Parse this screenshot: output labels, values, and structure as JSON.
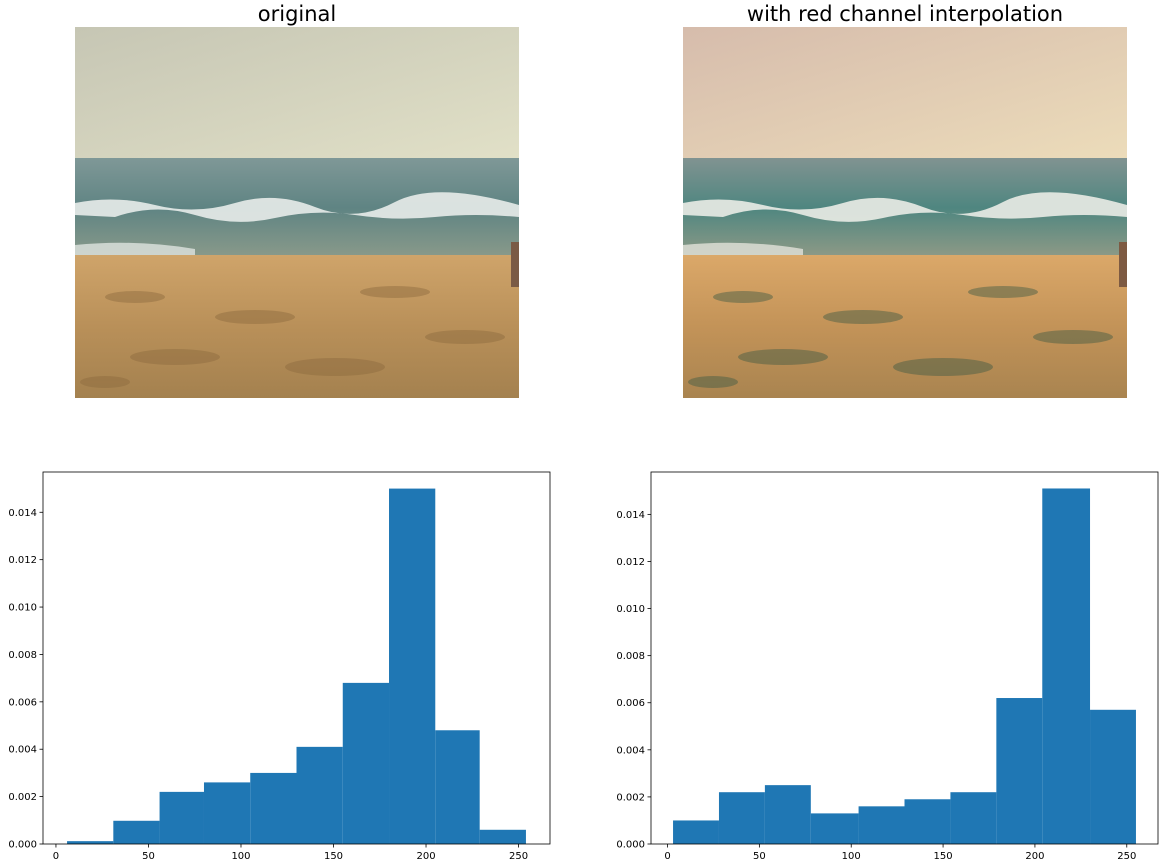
{
  "panels": {
    "left_title": "original",
    "right_title": "with red channel interpolation"
  },
  "colors": {
    "bar": "#1f77b4",
    "axis": "#000000",
    "left_sky_top": "#c9c9b6",
    "left_sky_bottom": "#dcdcc6",
    "left_sea": "#6d8c8a",
    "left_sand": "#c8a36a",
    "right_sky_top": "#d9bfae",
    "right_sky_bottom": "#e6d4b8",
    "right_sea": "#5f8c86",
    "right_sand": "#d3a466"
  },
  "chart_data": [
    {
      "type": "bar",
      "title": "",
      "xlabel": "",
      "ylabel": "",
      "xlim": [
        -7,
        267
      ],
      "ylim": [
        0,
        0.0157
      ],
      "xticks": [
        0,
        50,
        100,
        150,
        200,
        250
      ],
      "yticks": [
        "0.000",
        "0.002",
        "0.004",
        "0.006",
        "0.008",
        "0.010",
        "0.012",
        "0.014"
      ],
      "grid": false,
      "bin_edges": [
        6,
        31,
        56,
        80,
        105,
        130,
        155,
        180,
        205,
        229,
        254
      ],
      "values": [
        0.00012,
        0.00098,
        0.0022,
        0.0026,
        0.003,
        0.0041,
        0.0068,
        0.015,
        0.0048,
        0.0006
      ]
    },
    {
      "type": "bar",
      "title": "",
      "xlabel": "",
      "ylabel": "",
      "xlim": [
        -9,
        267
      ],
      "ylim": [
        0,
        0.0158
      ],
      "xticks": [
        0,
        50,
        100,
        150,
        200,
        250
      ],
      "yticks": [
        "0.000",
        "0.002",
        "0.004",
        "0.006",
        "0.008",
        "0.010",
        "0.012",
        "0.014"
      ],
      "grid": false,
      "bin_edges": [
        3,
        28,
        53,
        78,
        104,
        129,
        154,
        179,
        204,
        230,
        255
      ],
      "values": [
        0.001,
        0.0022,
        0.0025,
        0.0013,
        0.0016,
        0.0019,
        0.0022,
        0.0062,
        0.0151,
        0.0057
      ]
    }
  ]
}
